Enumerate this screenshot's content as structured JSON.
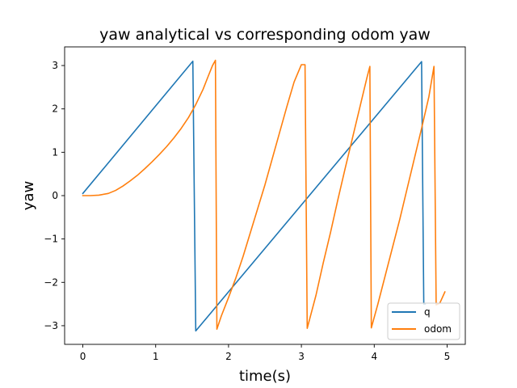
{
  "chart_data": {
    "type": "line",
    "title": "yaw analytical vs corresponding odom yaw",
    "xlabel": "time(s)",
    "ylabel": "yaw",
    "xlim": [
      -0.25,
      5.25
    ],
    "ylim": [
      -3.43,
      3.43
    ],
    "xticks": [
      0,
      1,
      2,
      3,
      4,
      5
    ],
    "yticks": [
      3,
      2,
      1,
      0,
      -1,
      -2,
      -3
    ],
    "xtick_labels": [
      "0",
      "1",
      "2",
      "3",
      "4",
      "5"
    ],
    "ytick_labels": [
      "3",
      "2",
      "1",
      "0",
      "−1",
      "−2",
      "−3"
    ],
    "grid": false,
    "legend_position": "lower right",
    "series": [
      {
        "name": "q",
        "color": "#1f77b4",
        "x": [
          0.0,
          1.51,
          1.55,
          4.65,
          4.68,
          4.7
        ],
        "y": [
          0.05,
          3.1,
          -3.12,
          3.09,
          -2.5,
          -2.5
        ]
      },
      {
        "name": "odom",
        "color": "#ff7f0e",
        "x": [
          0.0,
          0.1,
          0.22,
          0.35,
          0.45,
          0.55,
          0.65,
          0.75,
          0.85,
          0.95,
          1.05,
          1.15,
          1.25,
          1.35,
          1.45,
          1.55,
          1.65,
          1.72,
          1.78,
          1.82,
          1.84,
          1.9,
          2.0,
          2.1,
          2.2,
          2.3,
          2.4,
          2.5,
          2.6,
          2.7,
          2.8,
          2.9,
          3.0,
          3.05,
          3.08,
          3.2,
          3.3,
          3.4,
          3.5,
          3.6,
          3.7,
          3.8,
          3.9,
          3.94,
          3.96,
          4.05,
          4.15,
          4.25,
          4.35,
          4.45,
          4.55,
          4.65,
          4.75,
          4.82,
          4.85,
          4.9,
          4.97
        ],
        "y": [
          0.0,
          0.0,
          0.01,
          0.05,
          0.12,
          0.22,
          0.34,
          0.47,
          0.62,
          0.78,
          0.95,
          1.13,
          1.33,
          1.55,
          1.8,
          2.1,
          2.45,
          2.75,
          3.0,
          3.12,
          -3.08,
          -2.78,
          -2.35,
          -1.9,
          -1.4,
          -0.85,
          -0.3,
          0.25,
          0.85,
          1.45,
          2.05,
          2.62,
          3.02,
          3.02,
          -3.06,
          -2.3,
          -1.55,
          -0.85,
          -0.1,
          0.62,
          1.32,
          2.02,
          2.72,
          2.98,
          -3.05,
          -2.5,
          -1.85,
          -1.2,
          -0.55,
          0.15,
          0.85,
          1.55,
          2.28,
          2.98,
          -2.52,
          -2.48,
          -2.22
        ]
      }
    ]
  }
}
